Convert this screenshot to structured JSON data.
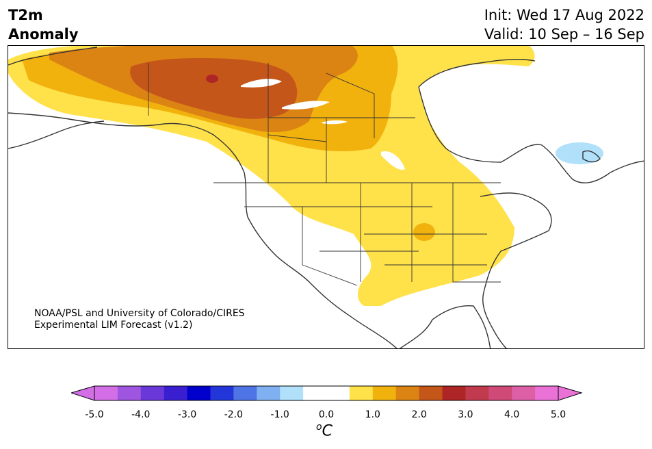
{
  "header": {
    "title_line1": "T2m",
    "title_line2": "Anomaly",
    "init": "Init: Wed 17 Aug 2022",
    "valid": "Valid: 10 Sep – 16 Sep"
  },
  "map": {
    "region": "North America",
    "variable": "2-m temperature anomaly",
    "credit_line1": "NOAA/PSL and University of Colorado/CIRES",
    "credit_line2": "Experimental LIM Forecast (v1.2)"
  },
  "colorbar": {
    "unit_base": "C",
    "unit_sup": "o",
    "tick_labels": [
      "-5.0",
      "-4.0",
      "-3.0",
      "-2.0",
      "-1.0",
      "0.0",
      "1.0",
      "2.0",
      "3.0",
      "4.0",
      "5.0"
    ],
    "bins": [
      {
        "color": "#d36ee6"
      },
      {
        "color": "#9e55e0"
      },
      {
        "color": "#6a38d9"
      },
      {
        "color": "#3a1fd1"
      },
      {
        "color": "#0000cc"
      },
      {
        "color": "#2336d9"
      },
      {
        "color": "#4f74e6"
      },
      {
        "color": "#7fb1f2"
      },
      {
        "color": "#b0e0fa"
      },
      {
        "color": "#ffffff"
      },
      {
        "color": "#ffffff"
      },
      {
        "color": "#ffe14a"
      },
      {
        "color": "#f1b20e"
      },
      {
        "color": "#db8414"
      },
      {
        "color": "#c5561a"
      },
      {
        "color": "#ae2525"
      },
      {
        "color": "#c13a4d"
      },
      {
        "color": "#cf4a77"
      },
      {
        "color": "#dd5fa6"
      },
      {
        "color": "#ea72d6"
      }
    ],
    "under_color": "#d36ee6",
    "over_color": "#ea72d6"
  }
}
